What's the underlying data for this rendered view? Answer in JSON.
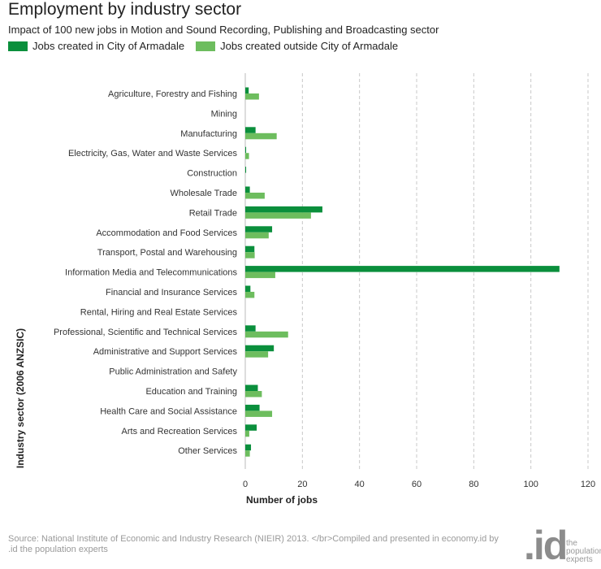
{
  "title": "Employment by industry sector",
  "subtitle": "Impact of 100 new jobs in Motion and Sound Recording, Publishing and Broadcasting sector",
  "footer": "Source: National Institute of Economic and Industry Research (NIEIR) 2013. </br>Compiled and presented in economy.id by .id the population experts",
  "brand": {
    "logo": ".id",
    "tagline_1": "the",
    "tagline_2": "population",
    "tagline_3": "experts"
  },
  "colors": {
    "inside": "#0a8f3c",
    "outside": "#6dbd5e",
    "grid": "#c8c8c8"
  },
  "chart_data": {
    "type": "bar",
    "orientation": "horizontal",
    "xlabel": "Number of jobs",
    "ylabel": "Industry sector (2006 ANZSIC)",
    "xlim": [
      0,
      120
    ],
    "xticks": [
      0,
      20,
      40,
      60,
      80,
      100,
      120
    ],
    "grid": "vertical dashed",
    "legend_position": "top-left",
    "categories": [
      "Agriculture, Forestry and Fishing",
      "Mining",
      "Manufacturing",
      "Electricity, Gas, Water and Waste Services",
      "Construction",
      "Wholesale Trade",
      "Retail Trade",
      "Accommodation and Food Services",
      "Transport, Postal and Warehousing",
      "Information Media and Telecommunications",
      "Financial and Insurance Services",
      "Rental, Hiring and Real Estate Services",
      "Professional, Scientific and Technical Services",
      "Administrative and Support Services",
      "Public Administration and Safety",
      "Education and Training",
      "Health Care and Social Assistance",
      "Arts and Recreation Services",
      "Other Services"
    ],
    "series": [
      {
        "name": "Jobs created in City of Armadale",
        "values": [
          1.2,
          0,
          3.6,
          0.3,
          0.3,
          1.6,
          27,
          9.4,
          3.2,
          110,
          1.8,
          0,
          3.6,
          10,
          0,
          4.4,
          5,
          4,
          2
        ]
      },
      {
        "name": "Jobs created outside City of Armadale",
        "values": [
          4.8,
          0,
          11,
          1.3,
          0,
          6.8,
          23,
          8.2,
          3.3,
          10.5,
          3.2,
          0,
          15,
          8,
          0,
          5.8,
          9.4,
          1.4,
          1.6
        ]
      }
    ]
  }
}
